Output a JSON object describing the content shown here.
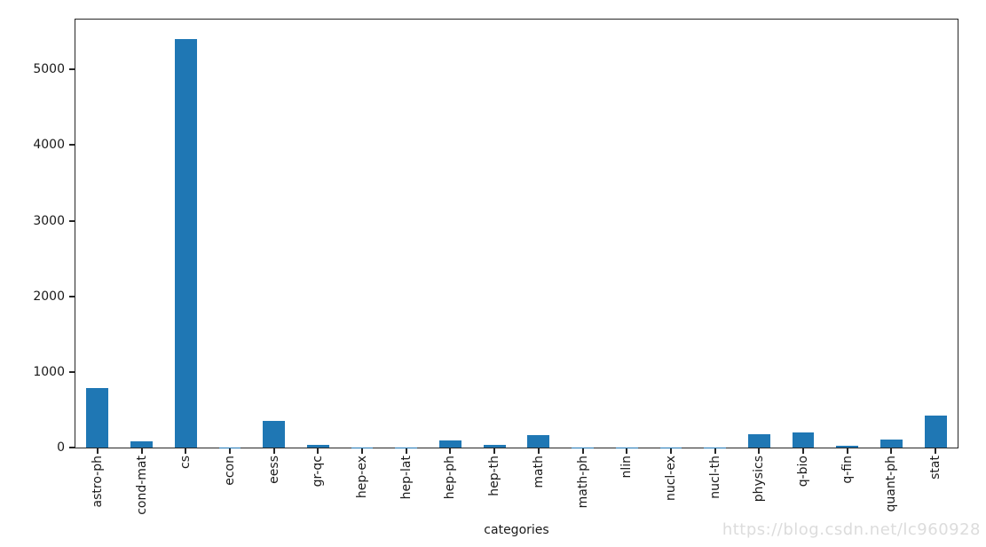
{
  "chart_data": {
    "type": "bar",
    "xlabel": "categories",
    "categories": [
      "astro-ph",
      "cond-mat",
      "cs",
      "econ",
      "eess",
      "gr-qc",
      "hep-ex",
      "hep-lat",
      "hep-ph",
      "hep-th",
      "math",
      "math-ph",
      "nlin",
      "nucl-ex",
      "nucl-th",
      "physics",
      "q-bio",
      "q-fin",
      "quant-ph",
      "stat"
    ],
    "values": [
      785,
      82,
      5400,
      4,
      350,
      40,
      3,
      2,
      95,
      30,
      165,
      4,
      3,
      2,
      2,
      175,
      205,
      25,
      105,
      420
    ],
    "yticks": [
      0,
      1000,
      2000,
      3000,
      4000,
      5000
    ],
    "ylim": [
      0,
      5660
    ],
    "bar_color": "#1f77b4",
    "bar_width_fraction": 0.5,
    "grid": false,
    "legend": null
  },
  "axes": {
    "spine_color": "#262626",
    "tick_color": "#262626",
    "text_color": "#1a1a1a"
  },
  "watermark": {
    "text": "https://blog.csdn.net/lc960928",
    "color": "#dcdcdc"
  }
}
